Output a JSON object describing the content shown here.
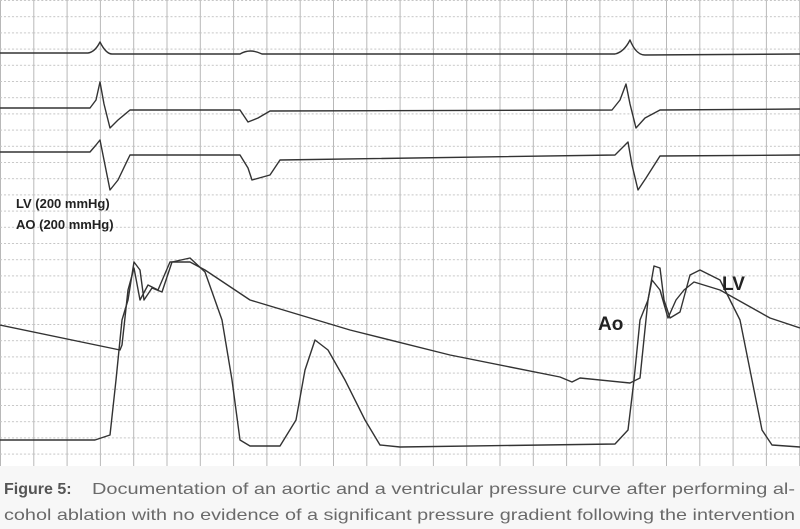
{
  "figure": {
    "labels": {
      "lv_scale": "LV (200 mmHg)",
      "ao_scale": "AO (200 mmHg)",
      "ao_curve": "Ao",
      "lv_curve": "LV"
    },
    "caption": {
      "label": "Figure 5:",
      "lines": [
        "Documentation of an aortic and a ventricular pressure curve after performing al-",
        "cohol ablation with no evidence of a significant pressure gradient following the intervention"
      ]
    }
  }
}
